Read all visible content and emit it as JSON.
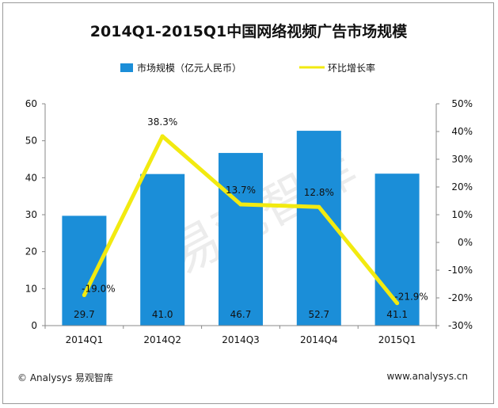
{
  "chart_data": {
    "type": "bar",
    "title": "2014Q1-2015Q1中国网络视频广告市场规模",
    "categories": [
      "2014Q1",
      "2014Q2",
      "2014Q3",
      "2014Q4",
      "2015Q1"
    ],
    "series": [
      {
        "name": "市场规模（亿元人民币）",
        "type": "bar",
        "axis": "left",
        "values": [
          29.7,
          41.0,
          46.7,
          52.7,
          41.1
        ],
        "labels": [
          "29.7",
          "41.0",
          "46.7",
          "52.7",
          "41.1"
        ]
      },
      {
        "name": "环比增长率",
        "type": "line",
        "axis": "right",
        "values": [
          -19.0,
          38.3,
          13.7,
          12.8,
          -21.9
        ],
        "labels": [
          "-19.0%",
          "38.3%",
          "13.7%",
          "12.8%",
          "-21.9%"
        ]
      }
    ],
    "y_left": {
      "min": 0,
      "max": 60,
      "ticks": [
        "0",
        "10",
        "20",
        "30",
        "40",
        "50",
        "60"
      ]
    },
    "y_right": {
      "min": -30,
      "max": 50,
      "ticks": [
        "-30%",
        "-20%",
        "-10%",
        "0%",
        "10%",
        "20%",
        "30%",
        "40%",
        "50%"
      ]
    },
    "legend_position": "top",
    "grid": false
  },
  "colors": {
    "bar": "#1b8ed8",
    "line": "#f2ea10"
  },
  "watermark": "易观智库",
  "footer": {
    "left": "© Analysys 易观智库",
    "right": "www.analysys.cn"
  }
}
